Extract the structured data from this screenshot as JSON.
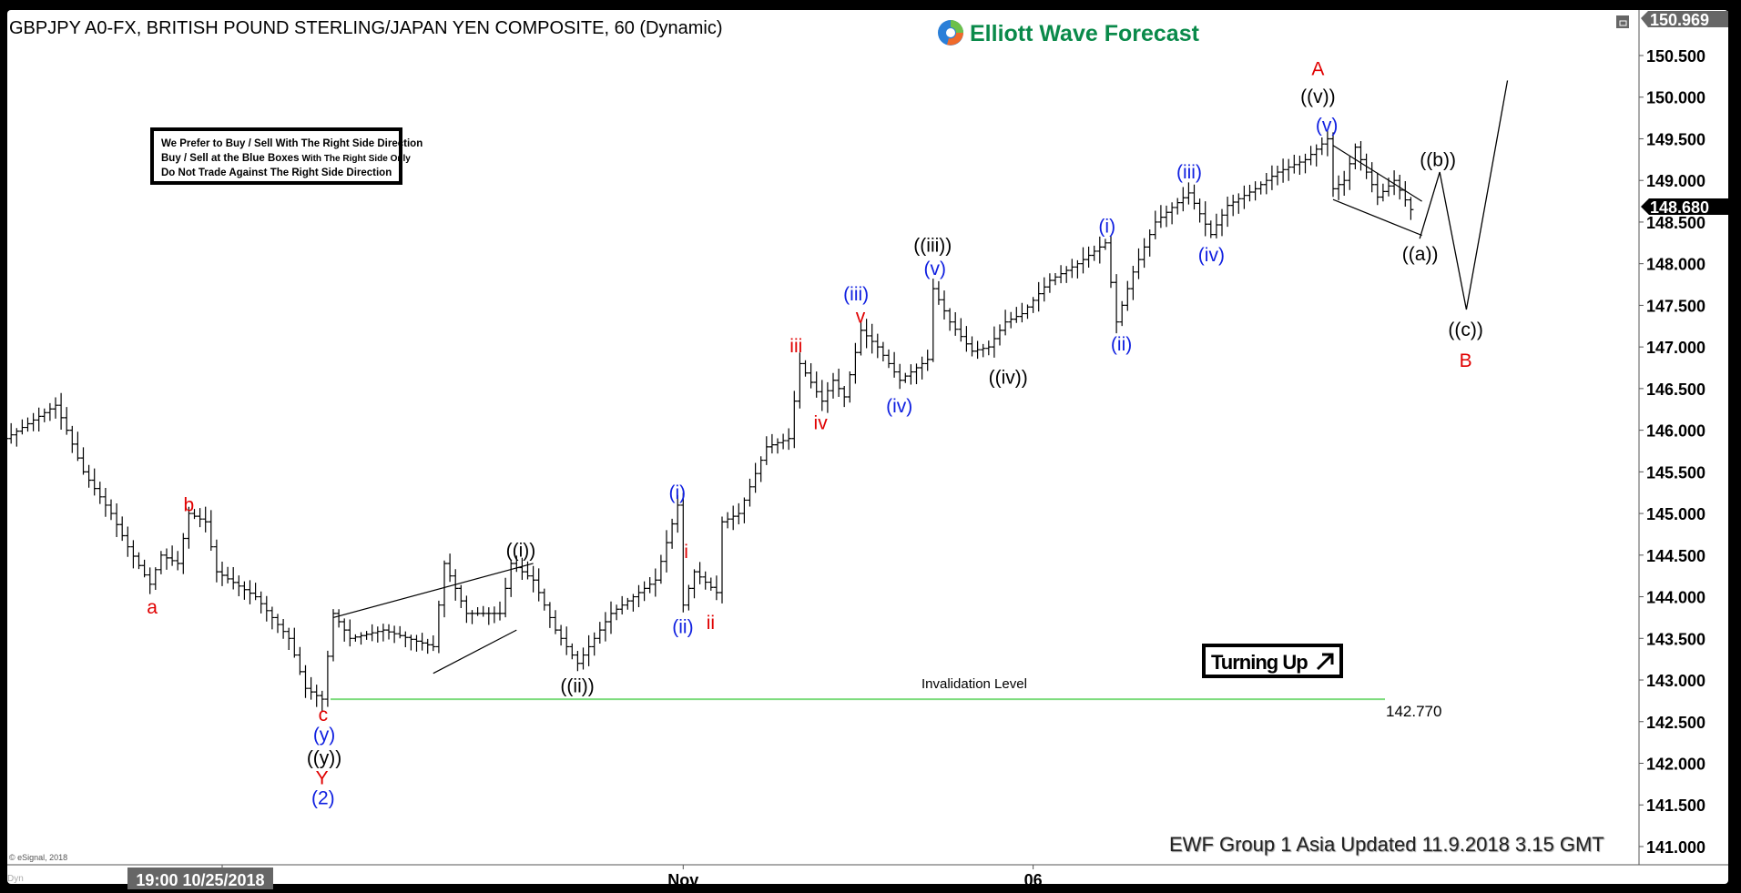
{
  "header": {
    "title": "GBPJPY A0-FX, BRITISH POUND STERLING/JAPAN YEN COMPOSITE, 60 (Dynamic)",
    "logo_text": "Elliott Wave Forecast",
    "logo_color": "#0a8a4a"
  },
  "note_box": {
    "line1": "We Prefer to Buy / Sell With The Right Side Direction",
    "line2a": "Buy / Sell at the Blue Boxes",
    "line2b": "With The Right Side Only",
    "line3": "Do Not Trade Against The Right Side Direction"
  },
  "badge": {
    "label": "Turning Up",
    "icon": "arrow-up-right-icon"
  },
  "invalidation": {
    "label": "Invalidation Level",
    "value": "142.770",
    "price": 142.77,
    "color": "#7ddc7d"
  },
  "footer": {
    "update_text": "EWF Group 1 Asia Updated 11.9.2018 3.15 GMT",
    "copyright": "© eSignal, 2018",
    "dyn_label": "Dyn"
  },
  "chart_data": {
    "type": "ohlc",
    "symbol": "GBPJPY",
    "interval": "60",
    "ylim": [
      140.8,
      151.1
    ],
    "y_ticks": [
      "150.500",
      "150.000",
      "149.500",
      "149.000",
      "148.500",
      "148.000",
      "147.500",
      "147.000",
      "146.500",
      "146.000",
      "145.500",
      "145.000",
      "144.500",
      "144.000",
      "143.500",
      "143.000",
      "142.500",
      "142.000",
      "141.500",
      "141.000"
    ],
    "y_tick_values": [
      150.5,
      150,
      149.5,
      149,
      148.5,
      148,
      147.5,
      147,
      146.5,
      146,
      145.5,
      145,
      144.5,
      144,
      143.5,
      143,
      142.5,
      142,
      141.5,
      141
    ],
    "high_marker": "150.969",
    "last_price": "148.680",
    "x_ticks": [
      {
        "label": "19:00 10/25/2018",
        "bar": 39,
        "highlight": true
      },
      {
        "label": "Nov",
        "bar": 122
      },
      {
        "label": "06",
        "bar": 185
      }
    ],
    "price_path": [
      [
        0,
        145.9
      ],
      [
        9,
        146.3
      ],
      [
        11,
        146.0
      ],
      [
        14,
        145.5
      ],
      [
        19,
        145.0
      ],
      [
        22,
        144.6
      ],
      [
        26,
        144.15
      ],
      [
        28,
        144.5
      ],
      [
        31,
        144.4
      ],
      [
        33,
        145.0
      ],
      [
        36,
        144.9
      ],
      [
        38,
        144.3
      ],
      [
        45,
        144.0
      ],
      [
        51,
        143.5
      ],
      [
        54,
        142.9
      ],
      [
        57,
        142.77
      ],
      [
        59,
        143.8
      ],
      [
        62,
        143.5
      ],
      [
        68,
        143.6
      ],
      [
        77,
        143.4
      ],
      [
        79,
        144.4
      ],
      [
        83,
        143.8
      ],
      [
        89,
        143.8
      ],
      [
        91,
        144.4
      ],
      [
        95,
        144.2
      ],
      [
        99,
        143.6
      ],
      [
        103,
        143.2
      ],
      [
        109,
        143.8
      ],
      [
        117,
        144.2
      ],
      [
        121,
        145.1
      ],
      [
        122,
        143.9
      ],
      [
        124,
        144.3
      ],
      [
        128,
        144.05
      ],
      [
        129,
        144.9
      ],
      [
        132,
        145.0
      ],
      [
        137,
        145.8
      ],
      [
        141,
        145.9
      ],
      [
        143,
        146.8
      ],
      [
        147,
        146.35
      ],
      [
        149,
        146.6
      ],
      [
        151,
        146.4
      ],
      [
        154,
        147.2
      ],
      [
        157,
        147.0
      ],
      [
        161,
        146.6
      ],
      [
        166,
        146.85
      ],
      [
        167,
        147.7
      ],
      [
        170,
        147.3
      ],
      [
        174,
        146.95
      ],
      [
        177,
        147.0
      ],
      [
        180,
        147.3
      ],
      [
        183,
        147.4
      ],
      [
        188,
        147.8
      ],
      [
        193,
        148.0
      ],
      [
        198,
        148.25
      ],
      [
        200,
        147.3
      ],
      [
        203,
        147.9
      ],
      [
        207,
        148.5
      ],
      [
        213,
        148.85
      ],
      [
        217,
        148.35
      ],
      [
        220,
        148.7
      ],
      [
        225,
        148.9
      ],
      [
        229,
        149.1
      ],
      [
        234,
        149.25
      ],
      [
        238,
        149.5
      ],
      [
        239,
        148.9
      ],
      [
        241,
        149.0
      ],
      [
        243,
        149.4
      ],
      [
        247,
        148.8
      ],
      [
        250,
        149.0
      ],
      [
        253,
        148.65
      ]
    ],
    "projection_path": [
      [
        254.6,
        148.3
      ],
      [
        258.2,
        149.1
      ],
      [
        263,
        147.45
      ],
      [
        270.4,
        150.2
      ]
    ],
    "trendlines": [
      [
        [
          59,
          143.75
        ],
        [
          95,
          144.4
        ]
      ],
      [
        [
          77,
          143.08
        ],
        [
          92,
          143.6
        ]
      ],
      [
        [
          239,
          149.42
        ],
        [
          255,
          148.75
        ]
      ],
      [
        [
          239,
          148.77
        ],
        [
          255,
          148.34
        ]
      ]
    ],
    "wave_labels": [
      {
        "text": "a",
        "color": "#e00000"
      },
      {
        "text": "b",
        "color": "#e00000"
      },
      {
        "text": "c",
        "color": "#e00000"
      },
      {
        "text": "Y",
        "color": "#e00000"
      },
      {
        "text": "iii",
        "color": "#e00000"
      },
      {
        "text": "iv",
        "color": "#e00000"
      },
      {
        "text": "v",
        "color": "#e00000"
      },
      {
        "text": "i",
        "color": "#e00000"
      },
      {
        "text": "ii",
        "color": "#e00000"
      },
      {
        "text": "A",
        "color": "#e00000"
      },
      {
        "text": "B",
        "color": "#e00000"
      },
      {
        "text": "(y)",
        "color": "#1020e0"
      },
      {
        "text": "(2)",
        "color": "#1020e0"
      },
      {
        "text": "(i)",
        "color": "#1020e0"
      },
      {
        "text": "(ii)",
        "color": "#1020e0"
      },
      {
        "text": "(iii)",
        "color": "#1020e0"
      },
      {
        "text": "(iv)",
        "color": "#1020e0"
      },
      {
        "text": "(v)",
        "color": "#1020e0"
      },
      {
        "text": "(i)",
        "color": "#1020e0"
      },
      {
        "text": "(ii)",
        "color": "#1020e0"
      },
      {
        "text": "(iii)",
        "color": "#1020e0"
      },
      {
        "text": "(iv)",
        "color": "#1020e0"
      },
      {
        "text": "(v)",
        "color": "#1020e0"
      },
      {
        "text": "((y))",
        "color": "#000000"
      },
      {
        "text": "((i))",
        "color": "#000000"
      },
      {
        "text": "((ii))",
        "color": "#000000"
      },
      {
        "text": "((iii))",
        "color": "#000000"
      },
      {
        "text": "((iv))",
        "color": "#000000"
      },
      {
        "text": "((v))",
        "color": "#000000"
      },
      {
        "text": "((a))",
        "color": "#000000"
      },
      {
        "text": "((b))",
        "color": "#000000"
      },
      {
        "text": "((c))",
        "color": "#000000"
      }
    ]
  }
}
